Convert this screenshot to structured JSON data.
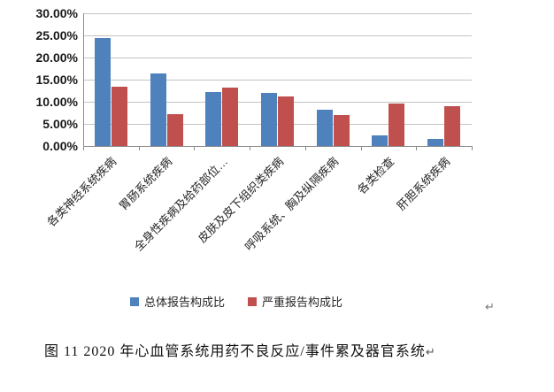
{
  "chart_data": {
    "type": "bar",
    "title": "",
    "categories": [
      "各类神经系统疾病",
      "胃肠系统疾病",
      "全身性疾病及给药部位…",
      "皮肤及皮下组织类疾病",
      "呼吸系统、胸及纵隔疾病",
      "各类检查",
      "肝胆系统疾病"
    ],
    "series": [
      {
        "name": "总体报告构成比",
        "color": "#4F81BD",
        "values": [
          24.4,
          16.4,
          12.3,
          12.0,
          8.3,
          2.5,
          1.7
        ]
      },
      {
        "name": "严重报告构成比",
        "color": "#C0504D",
        "values": [
          13.5,
          7.2,
          13.2,
          11.2,
          7.1,
          9.7,
          9.0
        ]
      }
    ],
    "xlabel": "",
    "ylabel": "",
    "ylim": [
      0,
      30
    ],
    "y_tick_step": 5,
    "y_tick_labels": [
      "0.00%",
      "5.00%",
      "10.00%",
      "15.00%",
      "20.00%",
      "25.00%",
      "30.00%"
    ],
    "grid": true,
    "legend_position": "bottom",
    "x_label_rotation_deg": 45
  },
  "colors": {
    "series_blue": "#4F81BD",
    "series_red": "#C0504D",
    "gridline": "#c3c3c3",
    "axis": "#8c8c8c"
  },
  "page": {
    "paragraph_mark": "↵"
  },
  "caption": {
    "text": "图 11  2020 年心血管系统用药不良反应/事件累及器官系统",
    "return_mark": "↵"
  }
}
